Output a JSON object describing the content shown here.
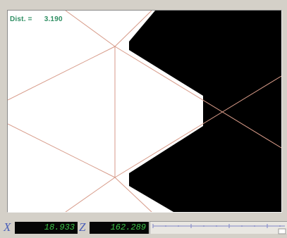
{
  "measurement": {
    "label": "Dist. =",
    "value": "3.190"
  },
  "readout": {
    "x_axis": "X",
    "x_value": "18.933",
    "z_axis": "Z",
    "z_value": "162.289"
  },
  "colors": {
    "reticle": "#d79a88",
    "shadow": "#000000",
    "text_green": "#2f8f63",
    "lcd_green": "#3dc548",
    "axis_blue": "#4a5fb8"
  }
}
